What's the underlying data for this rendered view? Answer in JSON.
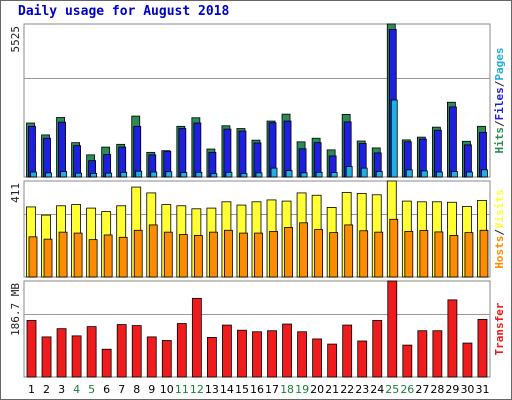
{
  "title": "Daily usage for August 2018",
  "colors": {
    "hits": "#2e8b57",
    "files": "#1f1fe0",
    "pages": "#22aee0",
    "visits": "#ffff33",
    "hosts": "#ff8c00",
    "transfer": "#ee1c1c",
    "weekend_label": "#1a7f3a",
    "axis_label": "#222222"
  },
  "chart_data": [
    {
      "type": "bar",
      "title": "Hits/Files/Pages",
      "ymax_label": "5525",
      "ylim": [
        0,
        5525
      ],
      "grid": true,
      "categories": [
        "1",
        "2",
        "3",
        "4",
        "5",
        "6",
        "7",
        "8",
        "9",
        "10",
        "11",
        "12",
        "13",
        "14",
        "15",
        "16",
        "17",
        "18",
        "19",
        "20",
        "21",
        "22",
        "23",
        "24",
        "25",
        "26",
        "27",
        "28",
        "29",
        "30",
        "31"
      ],
      "weekend_days": [
        "4",
        "5",
        "11",
        "12",
        "18",
        "19",
        "25",
        "26"
      ],
      "series": [
        {
          "name": "Hits",
          "values": [
            1950,
            1520,
            2150,
            1240,
            800,
            1080,
            1180,
            2200,
            890,
            950,
            1830,
            2140,
            1010,
            1850,
            1750,
            1330,
            2020,
            2270,
            1270,
            1400,
            980,
            2260,
            1300,
            1050,
            5525,
            1340,
            1440,
            1800,
            2700,
            1290,
            1830
          ]
        },
        {
          "name": "Files",
          "values": [
            1830,
            1400,
            1980,
            1130,
            590,
            810,
            1080,
            1830,
            800,
            930,
            1750,
            1950,
            890,
            1730,
            1660,
            1230,
            1960,
            2020,
            1020,
            1240,
            760,
            1990,
            1210,
            870,
            5330,
            1270,
            1370,
            1690,
            2530,
            1160,
            1610
          ]
        },
        {
          "name": "Pages",
          "values": [
            180,
            150,
            200,
            140,
            130,
            140,
            170,
            210,
            180,
            190,
            160,
            170,
            120,
            170,
            130,
            150,
            320,
            230,
            150,
            170,
            160,
            380,
            320,
            200,
            2780,
            260,
            220,
            180,
            200,
            180,
            260
          ]
        }
      ]
    },
    {
      "type": "bar",
      "title": "Hosts/Visits",
      "ymax_label": "411",
      "ylim": [
        0,
        411
      ],
      "grid": true,
      "categories": [
        "1",
        "2",
        "3",
        "4",
        "5",
        "6",
        "7",
        "8",
        "9",
        "10",
        "11",
        "12",
        "13",
        "14",
        "15",
        "16",
        "17",
        "18",
        "19",
        "20",
        "21",
        "22",
        "23",
        "24",
        "25",
        "26",
        "27",
        "28",
        "29",
        "30",
        "31"
      ],
      "series": [
        {
          "name": "Visits",
          "values": [
            300,
            265,
            305,
            310,
            295,
            280,
            305,
            385,
            360,
            310,
            305,
            292,
            295,
            322,
            308,
            322,
            330,
            325,
            360,
            350,
            298,
            362,
            358,
            352,
            411,
            325,
            322,
            322,
            320,
            302,
            328
          ]
        },
        {
          "name": "Hosts",
          "values": [
            172,
            162,
            192,
            188,
            160,
            180,
            170,
            200,
            223,
            192,
            182,
            178,
            192,
            200,
            188,
            188,
            195,
            212,
            232,
            203,
            190,
            223,
            198,
            192,
            247,
            195,
            199,
            193,
            178,
            190,
            200
          ]
        }
      ]
    },
    {
      "type": "bar",
      "title": "Transfer",
      "ymax_label": "186.7 MB",
      "ylim": [
        0,
        186.7
      ],
      "grid": true,
      "categories": [
        "1",
        "2",
        "3",
        "4",
        "5",
        "6",
        "7",
        "8",
        "9",
        "10",
        "11",
        "12",
        "13",
        "14",
        "15",
        "16",
        "17",
        "18",
        "19",
        "20",
        "21",
        "22",
        "23",
        "24",
        "25",
        "26",
        "27",
        "28",
        "29",
        "30",
        "31"
      ],
      "series": [
        {
          "name": "Transfer",
          "values": [
            110,
            78,
            94,
            80,
            98,
            54,
            102,
            100,
            78,
            71,
            104,
            153,
            77,
            101,
            91,
            88,
            90,
            103,
            88,
            74,
            64,
            101,
            70,
            110,
            186.7,
            62,
            90,
            90,
            150,
            66,
            112
          ]
        }
      ]
    }
  ]
}
